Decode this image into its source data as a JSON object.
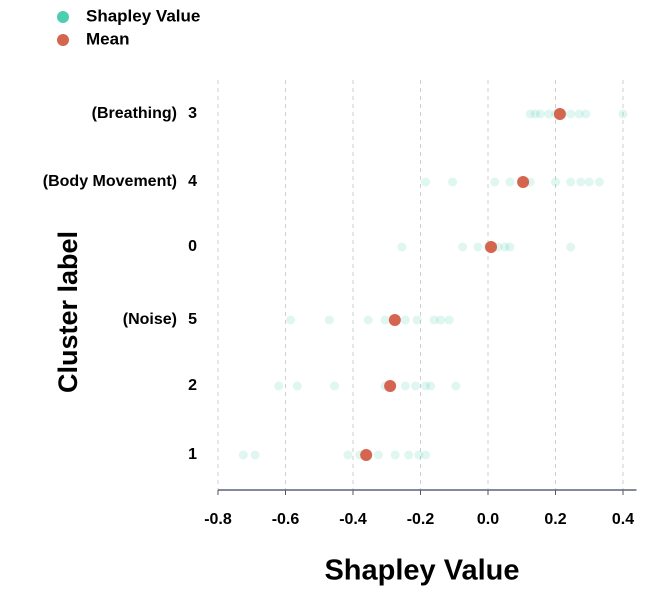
{
  "chart_data": {
    "type": "strip",
    "xlabel": "Shapley Value",
    "ylabel": "Cluster label",
    "categories": [
      "3",
      "4",
      "0",
      "5",
      "2",
      "1"
    ],
    "category_notes": [
      "(Breathing)",
      "(Body Movement)",
      null,
      "(Noise)",
      null,
      null
    ],
    "series": [
      {
        "name": "Shapley Value",
        "color": "#4ecdb0",
        "values": [
          [
            0.125,
            0.14,
            0.155,
            0.18,
            0.2,
            0.22,
            0.245,
            0.27,
            0.29,
            0.4
          ],
          [
            -0.185,
            -0.105,
            0.02,
            0.065,
            0.125,
            0.2,
            0.245,
            0.275,
            0.3,
            0.33
          ],
          [
            -0.255,
            -0.075,
            -0.03,
            0.0,
            0.03,
            0.05,
            0.065,
            0.245
          ],
          [
            -0.585,
            -0.47,
            -0.355,
            -0.305,
            -0.245,
            -0.21,
            -0.16,
            -0.14,
            -0.115
          ],
          [
            -0.62,
            -0.565,
            -0.455,
            -0.305,
            -0.245,
            -0.215,
            -0.185,
            -0.17,
            -0.095
          ],
          [
            -0.725,
            -0.69,
            -0.415,
            -0.38,
            -0.325,
            -0.275,
            -0.235,
            -0.205,
            -0.185
          ]
        ]
      },
      {
        "name": "Mean",
        "color": "#d4654f",
        "values": [
          0.213,
          0.104,
          0.009,
          -0.276,
          -0.29,
          -0.361
        ]
      }
    ],
    "xlim": [
      -0.8,
      0.44
    ],
    "xticks": [
      -0.8,
      -0.6,
      -0.4,
      -0.2,
      {
        "value": 0,
        "label": "0.0"
      },
      0.2,
      0.4
    ],
    "grid": true
  }
}
